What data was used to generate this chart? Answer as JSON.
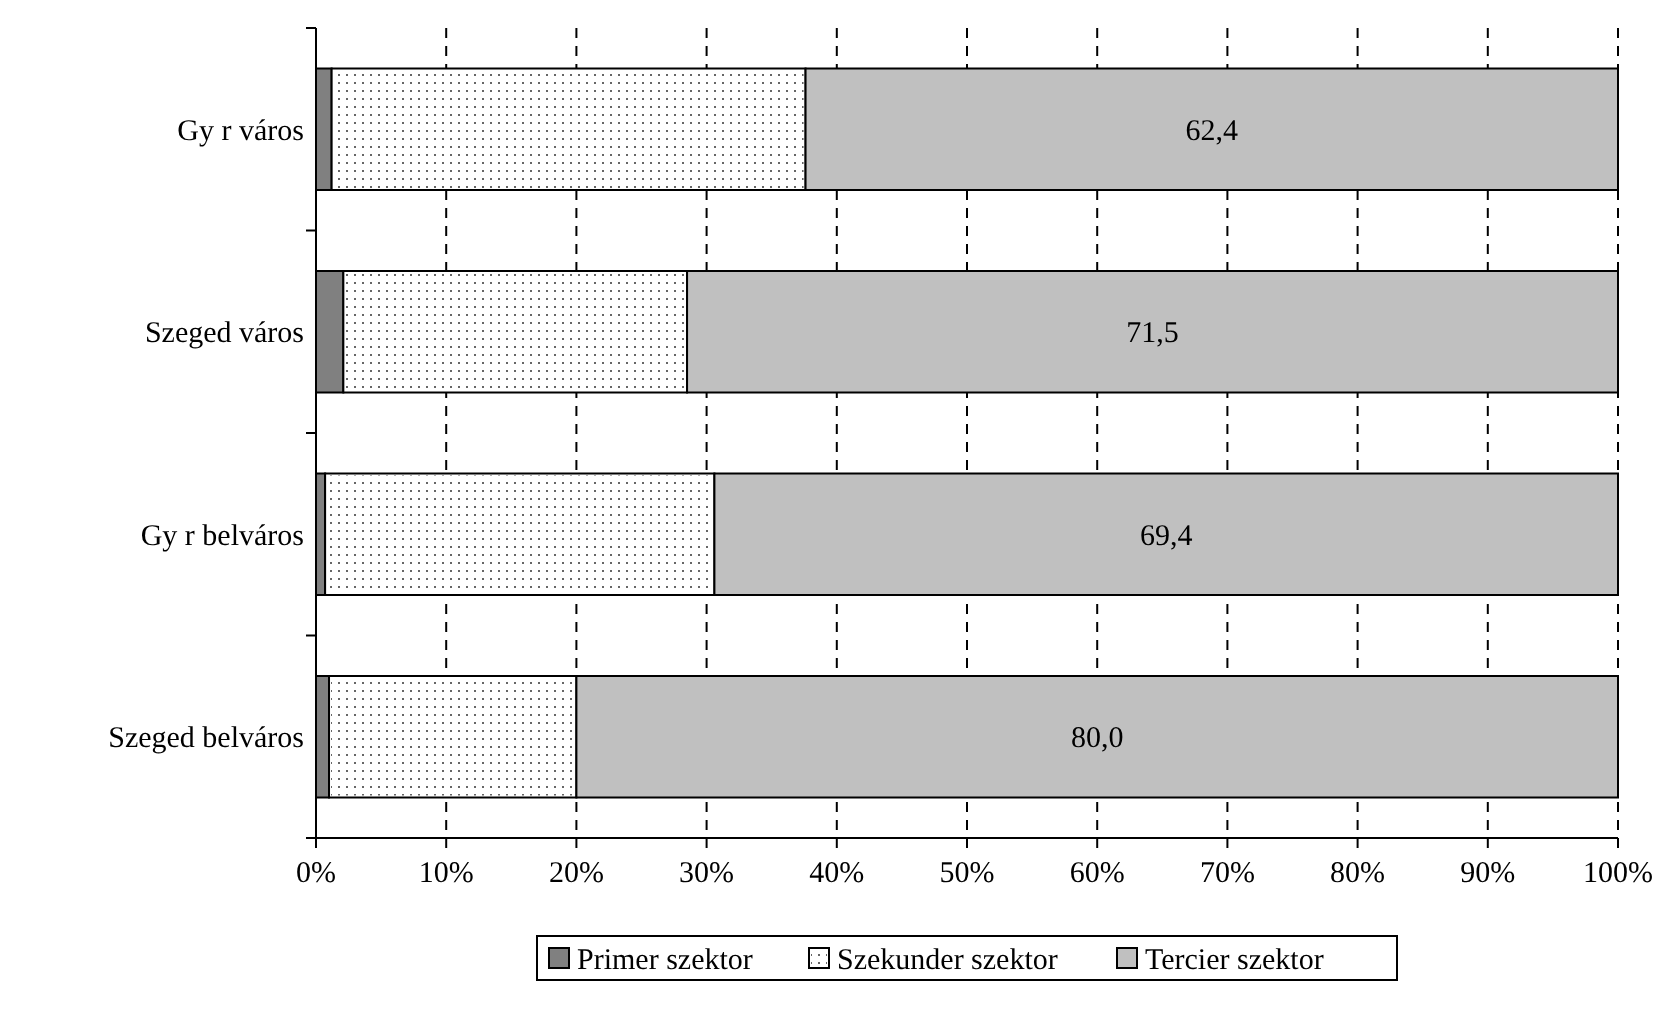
{
  "chart_data": {
    "type": "bar",
    "orientation": "horizontal",
    "stacked": true,
    "categories": [
      "Gy r város",
      "Szeged város",
      "Gy r belváros",
      "Szeged belváros"
    ],
    "series": [
      {
        "name": "Primer szektor",
        "color": "#808080",
        "values": [
          1.2,
          2.1,
          0.7,
          1.0
        ]
      },
      {
        "name": "Szekunder szektor",
        "color": "#ffffff",
        "values": [
          36.4,
          26.4,
          29.9,
          19.0
        ]
      },
      {
        "name": "Tercier szektor",
        "color": "#c0c0c0",
        "values": [
          62.4,
          71.5,
          69.4,
          80.0
        ],
        "value_labels": [
          "62,4",
          "71,5",
          "69,4",
          "80,0"
        ]
      }
    ],
    "xlim": [
      0,
      100
    ],
    "xticks": [
      {
        "value": 0,
        "label": "0%"
      },
      {
        "value": 10,
        "label": "10%"
      },
      {
        "value": 20,
        "label": "20%"
      },
      {
        "value": 30,
        "label": "30%"
      },
      {
        "value": 40,
        "label": "40%"
      },
      {
        "value": 50,
        "label": "50%"
      },
      {
        "value": 60,
        "label": "60%"
      },
      {
        "value": 70,
        "label": "70%"
      },
      {
        "value": 80,
        "label": "80%"
      },
      {
        "value": 90,
        "label": "90%"
      },
      {
        "value": 100,
        "label": "100%"
      }
    ],
    "grid": "x",
    "legend": "bottom"
  }
}
